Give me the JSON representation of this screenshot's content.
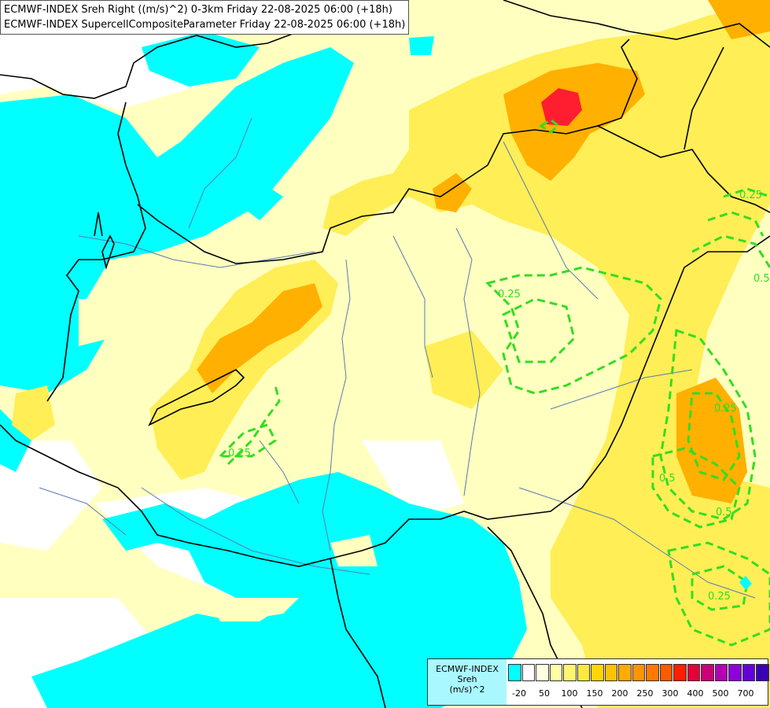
{
  "header": {
    "line1": "ECMWF-INDEX Sreh Right ((m/s)^2) 0-3km Friday 22-08-2025 06:00 (+18h)",
    "line2": "ECMWF-INDEX SupercellCompositeParameter Friday 22-08-2025 06:00 (+18h)"
  },
  "contour_labels": [
    "0.25",
    "0.25",
    "0.25",
    "0.5",
    "0.5",
    "0.25",
    "0.5",
    "0.25"
  ],
  "legend": {
    "line1": "ECMWF-INDEX",
    "line2": "Sreh",
    "line3": "(m/s)^2",
    "colors": [
      "#00ffff",
      "#ffffff",
      "#ffffe0",
      "#ffffa8",
      "#fff570",
      "#ffe93c",
      "#ffd700",
      "#ffc200",
      "#ffab00",
      "#ff9400",
      "#ff7a00",
      "#ff5a00",
      "#ff1e00",
      "#e6003c",
      "#cc0078",
      "#b400b4",
      "#8c00dc",
      "#6400dc",
      "#3c00b4",
      "#14008c"
    ],
    "ticks": [
      "-20",
      "50",
      "100",
      "150",
      "200",
      "250",
      "300",
      "400",
      "500",
      "700"
    ]
  },
  "colors": {
    "cyan": "#00ffff",
    "light_yellow": "#ffffc0",
    "yellow": "#ffee55",
    "orange": "#ffb000",
    "red": "#ff1e30",
    "scp_contour": "#33dd22"
  }
}
